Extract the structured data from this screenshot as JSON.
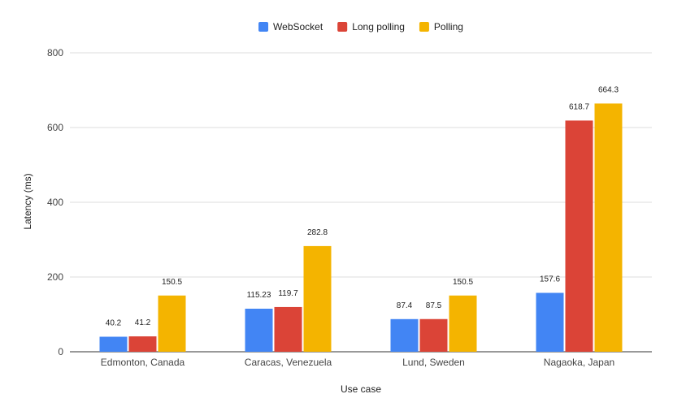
{
  "chart_data": {
    "type": "bar",
    "title": "",
    "xlabel": "Use case",
    "ylabel": "Latency (ms)",
    "ylim": [
      0,
      800
    ],
    "yticks": [
      0,
      200,
      400,
      600,
      800
    ],
    "grid": true,
    "legend_position": "top",
    "categories": [
      "Edmonton, Canada",
      "Caracas, Venezuela",
      "Lund, Sweden",
      "Nagaoka, Japan"
    ],
    "series": [
      {
        "name": "WebSocket",
        "color": "#4285f4",
        "values": [
          40.2,
          115.23,
          87.4,
          157.6
        ]
      },
      {
        "name": "Long polling",
        "color": "#db4437",
        "values": [
          41.2,
          119.7,
          87.5,
          618.7
        ]
      },
      {
        "name": "Polling",
        "color": "#f4b400",
        "values": [
          150.5,
          282.8,
          150.5,
          664.3
        ]
      }
    ]
  }
}
